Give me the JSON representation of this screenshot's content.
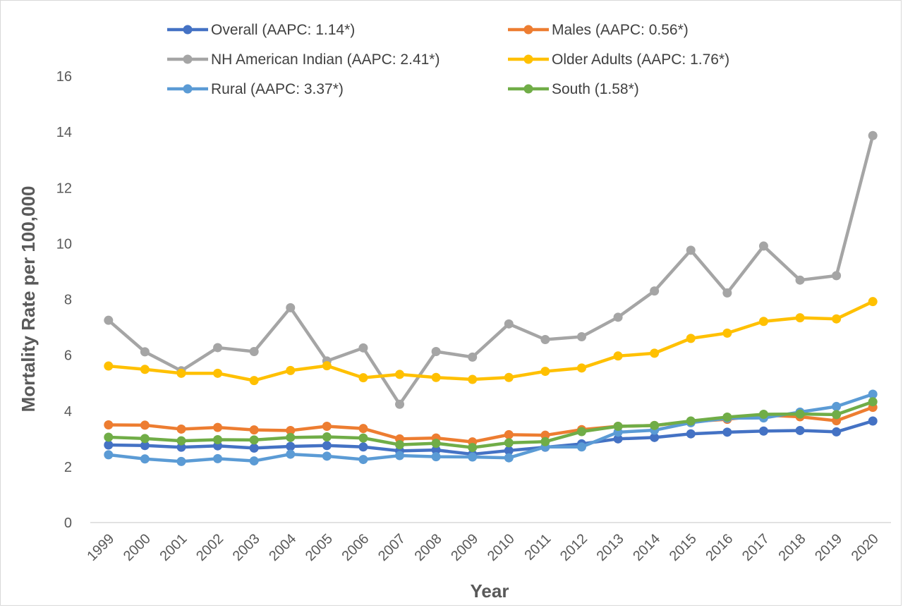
{
  "chart_data": {
    "type": "line",
    "title": "",
    "xlabel": "Year",
    "ylabel": "Mortality Rate per 100,000",
    "ylim": [
      0,
      16
    ],
    "yticks": [
      0,
      2,
      4,
      6,
      8,
      10,
      12,
      14,
      16
    ],
    "grid": false,
    "legend_position": "top",
    "categories": [
      "1999",
      "2000",
      "2001",
      "2002",
      "2003",
      "2004",
      "2005",
      "2006",
      "2007",
      "2008",
      "2009",
      "2010",
      "2011",
      "2012",
      "2013",
      "2014",
      "2015",
      "2016",
      "2017",
      "2018",
      "2019",
      "2020"
    ],
    "series": [
      {
        "name": "Overall (AAPC: 1.14*)",
        "color": "#4472c4",
        "values": [
          2.78,
          2.76,
          2.7,
          2.75,
          2.67,
          2.73,
          2.76,
          2.71,
          2.57,
          2.6,
          2.45,
          2.58,
          2.7,
          2.82,
          3.0,
          3.05,
          3.18,
          3.24,
          3.28,
          3.3,
          3.25,
          3.64
        ]
      },
      {
        "name": "Males (AAPC: 0.56*)",
        "color": "#ed7d31",
        "values": [
          3.5,
          3.49,
          3.35,
          3.41,
          3.32,
          3.3,
          3.45,
          3.37,
          3.0,
          3.03,
          2.89,
          3.15,
          3.13,
          3.33,
          3.45,
          3.48,
          3.62,
          3.7,
          3.85,
          3.79,
          3.65,
          4.13
        ]
      },
      {
        "name": "NH American Indian (AAPC: 2.41*)",
        "color": "#a5a5a5",
        "values": [
          7.25,
          6.12,
          5.44,
          6.27,
          6.13,
          7.7,
          5.79,
          6.26,
          4.24,
          6.13,
          5.93,
          7.12,
          6.56,
          6.66,
          7.36,
          8.3,
          9.76,
          8.23,
          9.91,
          8.69,
          8.85,
          13.87
        ]
      },
      {
        "name": "Older Adults (AAPC: 1.76*)",
        "color": "#ffc000",
        "values": [
          5.61,
          5.49,
          5.35,
          5.35,
          5.09,
          5.45,
          5.62,
          5.19,
          5.31,
          5.2,
          5.13,
          5.2,
          5.42,
          5.54,
          5.97,
          6.07,
          6.6,
          6.79,
          7.21,
          7.34,
          7.3,
          7.92
        ]
      },
      {
        "name": "Rural (AAPC: 3.37*)",
        "color": "#5b9bd5",
        "values": [
          2.43,
          2.28,
          2.19,
          2.29,
          2.21,
          2.45,
          2.38,
          2.26,
          2.4,
          2.36,
          2.35,
          2.32,
          2.71,
          2.71,
          3.24,
          3.31,
          3.58,
          3.74,
          3.75,
          3.96,
          4.16,
          4.6
        ]
      },
      {
        "name": "South (1.58*)",
        "color": "#70ad47",
        "values": [
          3.06,
          3.01,
          2.93,
          2.97,
          2.96,
          3.05,
          3.07,
          3.03,
          2.79,
          2.84,
          2.69,
          2.86,
          2.9,
          3.26,
          3.45,
          3.48,
          3.64,
          3.78,
          3.88,
          3.89,
          3.87,
          4.33
        ]
      }
    ]
  }
}
